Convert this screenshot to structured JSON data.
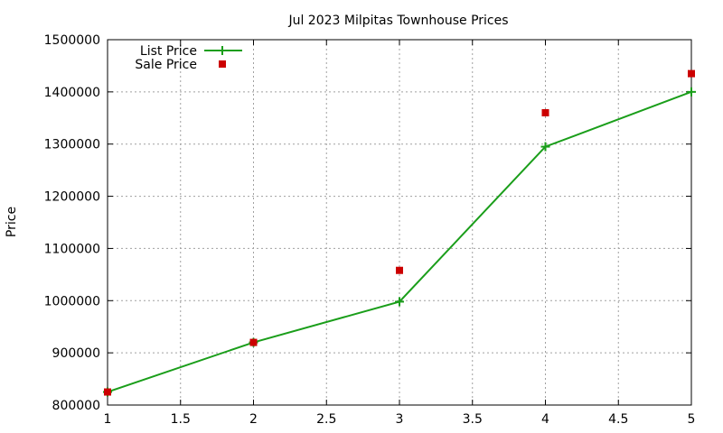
{
  "chart_data": {
    "type": "line",
    "title": "Jul 2023 Milpitas Townhouse Prices",
    "xlabel": "",
    "ylabel": "Price",
    "xlim": [
      1,
      5
    ],
    "ylim": [
      800000,
      1500000
    ],
    "x_ticks": [
      "1",
      "1.5",
      "2",
      "2.5",
      "3",
      "3.5",
      "4",
      "4.5",
      "5"
    ],
    "y_ticks": [
      "800000",
      "900000",
      "1000000",
      "1100000",
      "1200000",
      "1300000",
      "1400000",
      "1500000"
    ],
    "grid": true,
    "legend_position": "top-left",
    "series": [
      {
        "name": "List Price",
        "style": "line-with-plus-markers",
        "color": "#1a9e1a",
        "x": [
          1,
          2,
          3,
          4,
          5
        ],
        "y": [
          825000,
          920000,
          998000,
          1295000,
          1400000
        ]
      },
      {
        "name": "Sale Price",
        "style": "square-markers",
        "color": "#cc0000",
        "x": [
          1,
          2,
          3,
          4,
          5
        ],
        "y": [
          825000,
          920000,
          1058000,
          1360000,
          1435000
        ]
      }
    ]
  }
}
